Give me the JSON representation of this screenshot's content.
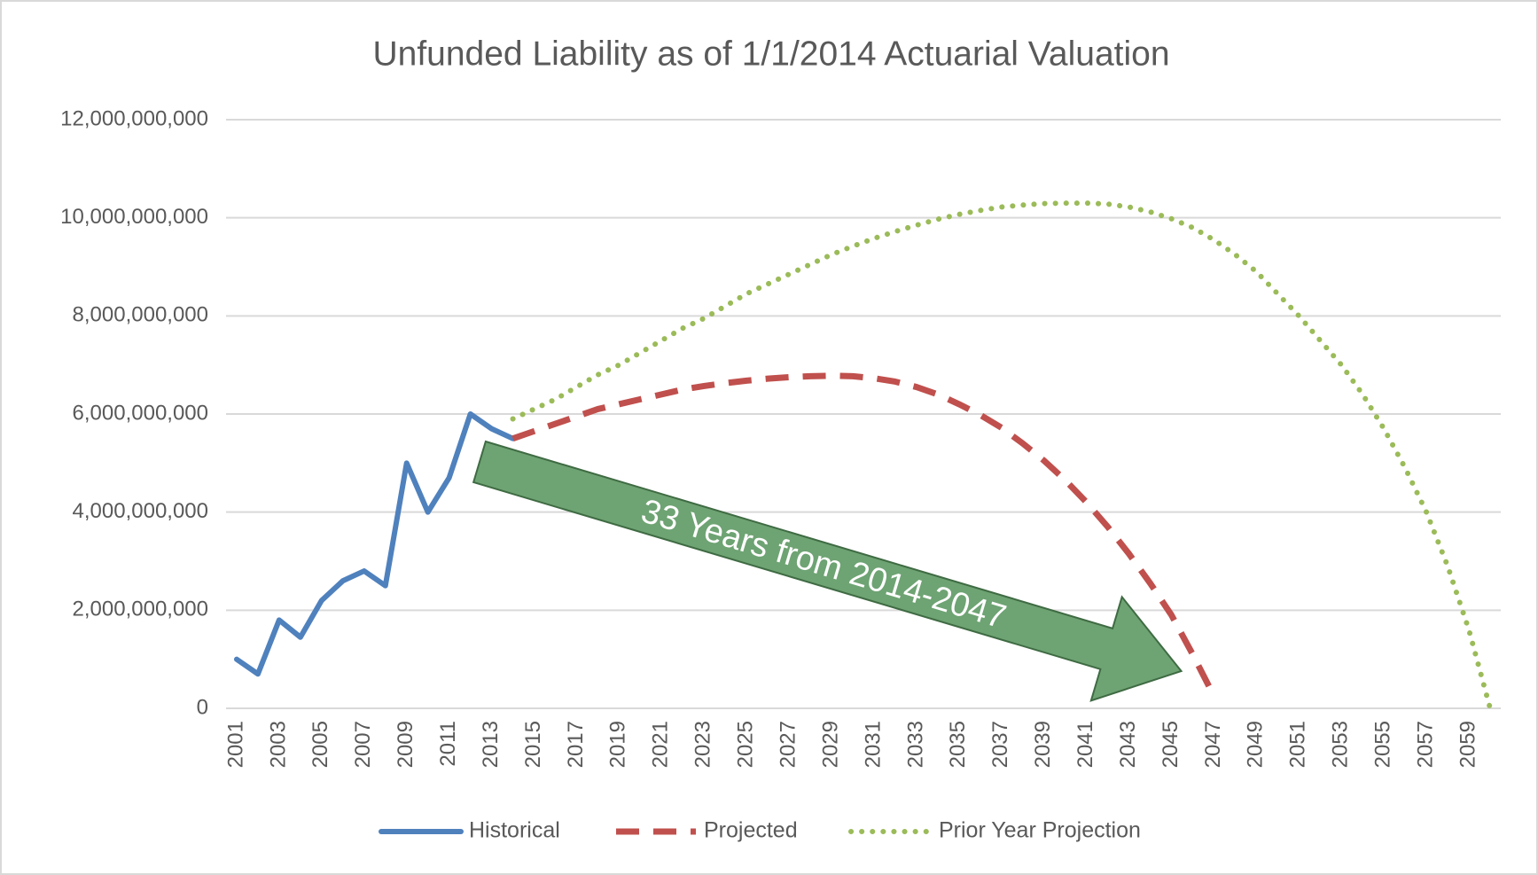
{
  "chart_data": {
    "type": "line",
    "title": "Unfunded Liability as of 1/1/2014 Actuarial Valuation",
    "categories": [
      "2001",
      null,
      "2003",
      null,
      "2005",
      null,
      "2007",
      null,
      "2009",
      null,
      "2011",
      null,
      "2013",
      null,
      "2015",
      null,
      "2017",
      null,
      "2019",
      null,
      "2021",
      null,
      "2023",
      null,
      "2025",
      null,
      "2027",
      null,
      "2029",
      null,
      "2031",
      null,
      "2033",
      null,
      "2035",
      null,
      "2037",
      null,
      "2039",
      null,
      "2041",
      null,
      "2043",
      null,
      "2045",
      null,
      "2047",
      null,
      "2049",
      null,
      "2051",
      null,
      "2053",
      null,
      "2055",
      null,
      "2057",
      null,
      "2059",
      null
    ],
    "series": [
      {
        "name": "Historical",
        "color": "#4f81bd",
        "dash": "solid",
        "values": [
          1000000000,
          700000000,
          1800000000,
          1450000000,
          2200000000,
          2600000000,
          2800000000,
          2500000000,
          5000000000,
          4000000000,
          4700000000,
          6000000000,
          5700000000,
          5500000000,
          null,
          null,
          null,
          null,
          null,
          null,
          null,
          null,
          null,
          null,
          null,
          null,
          null,
          null,
          null,
          null,
          null,
          null,
          null,
          null,
          null,
          null,
          null,
          null,
          null,
          null,
          null,
          null,
          null,
          null,
          null,
          null,
          null,
          null,
          null,
          null,
          null,
          null,
          null,
          null,
          null,
          null,
          null,
          null,
          null,
          null
        ]
      },
      {
        "name": "Projected",
        "color": "#c0504d",
        "dash": "dashed",
        "values": [
          null,
          null,
          null,
          null,
          null,
          null,
          null,
          null,
          null,
          null,
          null,
          null,
          null,
          5500000000,
          5650000000,
          5800000000,
          5950000000,
          6100000000,
          6200000000,
          6300000000,
          6400000000,
          6500000000,
          6570000000,
          6630000000,
          6680000000,
          6720000000,
          6750000000,
          6770000000,
          6780000000,
          6770000000,
          6730000000,
          6660000000,
          6550000000,
          6400000000,
          6200000000,
          5980000000,
          5720000000,
          5400000000,
          5050000000,
          4650000000,
          4200000000,
          3700000000,
          3150000000,
          2550000000,
          1900000000,
          1100000000,
          250000000,
          null,
          null,
          null,
          null,
          null,
          null,
          null,
          null,
          null,
          null,
          null,
          null,
          null
        ]
      },
      {
        "name": "Prior Year Projection",
        "color": "#9bbb59",
        "dash": "dotted",
        "values": [
          null,
          null,
          null,
          null,
          null,
          null,
          null,
          null,
          null,
          null,
          null,
          null,
          null,
          5900000000,
          6100000000,
          6300000000,
          6550000000,
          6800000000,
          7000000000,
          7250000000,
          7500000000,
          7750000000,
          7950000000,
          8200000000,
          8450000000,
          8650000000,
          8850000000,
          9050000000,
          9250000000,
          9420000000,
          9580000000,
          9720000000,
          9850000000,
          9970000000,
          10070000000,
          10150000000,
          10220000000,
          10260000000,
          10290000000,
          10300000000,
          10300000000,
          10280000000,
          10220000000,
          10120000000,
          9980000000,
          9800000000,
          9550000000,
          9250000000,
          8900000000,
          8450000000,
          8000000000,
          7500000000,
          7000000000,
          6400000000,
          5700000000,
          4900000000,
          4000000000,
          2900000000,
          1600000000,
          0
        ]
      }
    ],
    "ylim": [
      0,
      12000000000
    ],
    "yticks": [
      0,
      {
        "value": 2000000000,
        "label": "2,000,000,000"
      },
      {
        "value": 4000000000,
        "label": "4,000,000,000"
      },
      {
        "value": 6000000000,
        "label": "6,000,000,000"
      },
      {
        "value": 8000000000,
        "label": "8,000,000,000"
      },
      {
        "value": 10000000000,
        "label": "10,000,000,000"
      },
      {
        "value": 12000000000,
        "label": "12,000,000,000"
      }
    ],
    "grid": true,
    "legend": "bottom",
    "annotation": "33 Years from 2014-2047"
  }
}
